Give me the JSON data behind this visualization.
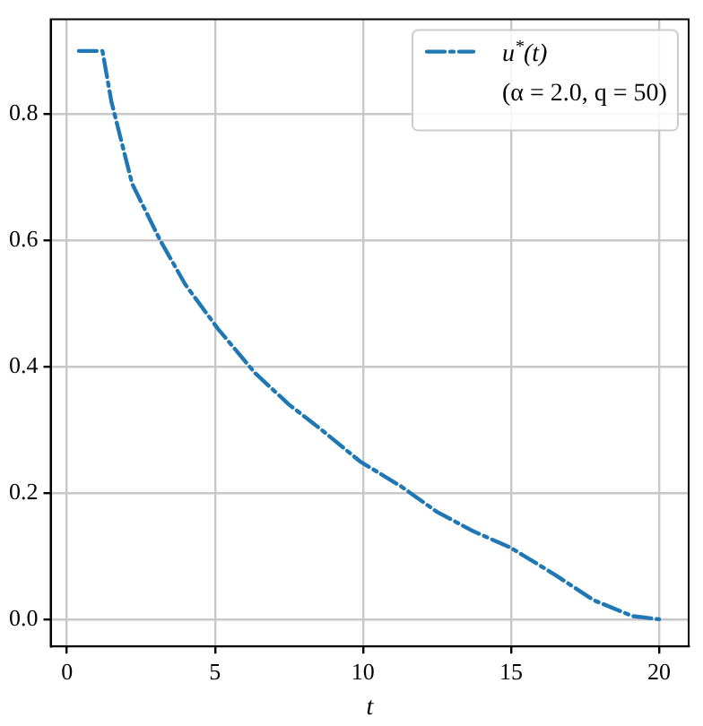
{
  "chart_data": {
    "type": "line",
    "xlabel": "t",
    "xlim": [
      -0.55,
      21
    ],
    "ylim": [
      -0.043,
      0.95
    ],
    "xticks": [
      0,
      5,
      10,
      15,
      20
    ],
    "yticks": [
      {
        "value": 0,
        "label": "0.0"
      },
      {
        "value": 0.2,
        "label": "0.2"
      },
      {
        "value": 0.4,
        "label": "0.4"
      },
      {
        "value": 0.6,
        "label": "0.6"
      },
      {
        "value": 0.8,
        "label": "0.8"
      }
    ],
    "series": [
      {
        "name": "u$^{*}$(t)",
        "color": "#1f77b4",
        "x": [
          0.4,
          1.2,
          1.5,
          2.2,
          3.15,
          4,
          5.1,
          6.35,
          7.5,
          8.6,
          9.9,
          11.3,
          12.5,
          13.7,
          15.0,
          16.5,
          17.8,
          19.1,
          20
        ],
        "values": [
          0.9,
          0.9,
          0.82,
          0.69,
          0.6,
          0.53,
          0.46,
          0.39,
          0.34,
          0.3,
          0.25,
          0.21,
          0.17,
          0.14,
          0.113,
          0.07,
          0.03,
          0.005,
          0.0
        ]
      }
    ],
    "annotations": [
      "(α = 2.0, q = 50)"
    ],
    "line_style": "dashdot",
    "marker": "none",
    "grid": true,
    "legend": "top right"
  }
}
